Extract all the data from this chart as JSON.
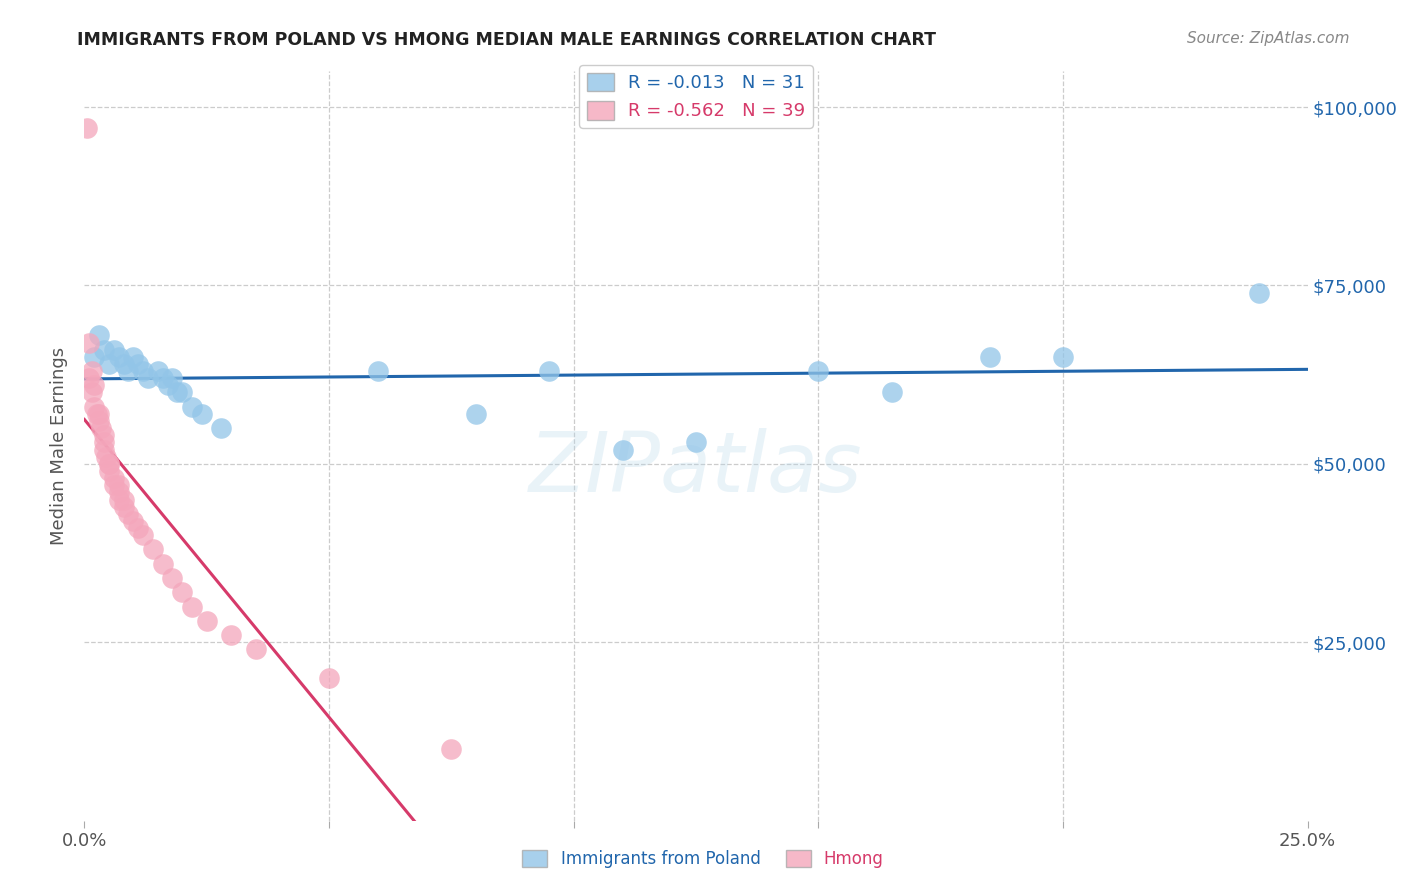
{
  "title": "IMMIGRANTS FROM POLAND VS HMONG MEDIAN MALE EARNINGS CORRELATION CHART",
  "source": "Source: ZipAtlas.com",
  "ylabel": "Median Male Earnings",
  "xlim": [
    0.0,
    0.25
  ],
  "ylim": [
    0,
    105000
  ],
  "ytick_labels": [
    "$100,000",
    "$75,000",
    "$50,000",
    "$25,000"
  ],
  "ytick_values": [
    100000,
    75000,
    50000,
    25000
  ],
  "ytick_right_labels": [
    "$100,000",
    "$75,000",
    "$50,000",
    "$25,000"
  ],
  "grid_color": "#cccccc",
  "background_color": "#ffffff",
  "watermark": "ZIPatlas",
  "poland_color": "#92C5E8",
  "poland_line_color": "#2166AC",
  "hmong_color": "#F4A6BB",
  "hmong_line_color": "#D63A6A",
  "poland_R": "-0.013",
  "poland_N": "31",
  "hmong_R": "-0.562",
  "hmong_N": "39",
  "poland_x": [
    0.002,
    0.003,
    0.004,
    0.005,
    0.006,
    0.007,
    0.008,
    0.009,
    0.01,
    0.011,
    0.012,
    0.013,
    0.015,
    0.016,
    0.017,
    0.018,
    0.019,
    0.02,
    0.022,
    0.024,
    0.028,
    0.06,
    0.08,
    0.095,
    0.11,
    0.125,
    0.15,
    0.165,
    0.185,
    0.2,
    0.24
  ],
  "poland_y": [
    65000,
    68000,
    66000,
    64000,
    66000,
    65000,
    64000,
    63000,
    65000,
    64000,
    63000,
    62000,
    63000,
    62000,
    61000,
    62000,
    60000,
    60000,
    58000,
    57000,
    55000,
    63000,
    57000,
    63000,
    52000,
    53000,
    63000,
    60000,
    65000,
    65000,
    74000
  ],
  "hmong_x": [
    0.0005,
    0.001,
    0.001,
    0.0015,
    0.0015,
    0.002,
    0.002,
    0.0025,
    0.003,
    0.003,
    0.0035,
    0.004,
    0.004,
    0.004,
    0.0045,
    0.005,
    0.005,
    0.005,
    0.006,
    0.006,
    0.007,
    0.007,
    0.007,
    0.008,
    0.008,
    0.009,
    0.01,
    0.011,
    0.012,
    0.014,
    0.016,
    0.018,
    0.02,
    0.022,
    0.025,
    0.03,
    0.035,
    0.05,
    0.075
  ],
  "hmong_y": [
    97000,
    67000,
    62000,
    63000,
    60000,
    61000,
    58000,
    57000,
    57000,
    56000,
    55000,
    54000,
    53000,
    52000,
    51000,
    50000,
    50000,
    49000,
    48000,
    47000,
    47000,
    46000,
    45000,
    45000,
    44000,
    43000,
    42000,
    41000,
    40000,
    38000,
    36000,
    34000,
    32000,
    30000,
    28000,
    26000,
    24000,
    20000,
    10000
  ],
  "hmong_trend_x0": 0.0,
  "hmong_trend_x1": 0.1,
  "poland_trend_x0": 0.0,
  "poland_trend_x1": 0.25
}
